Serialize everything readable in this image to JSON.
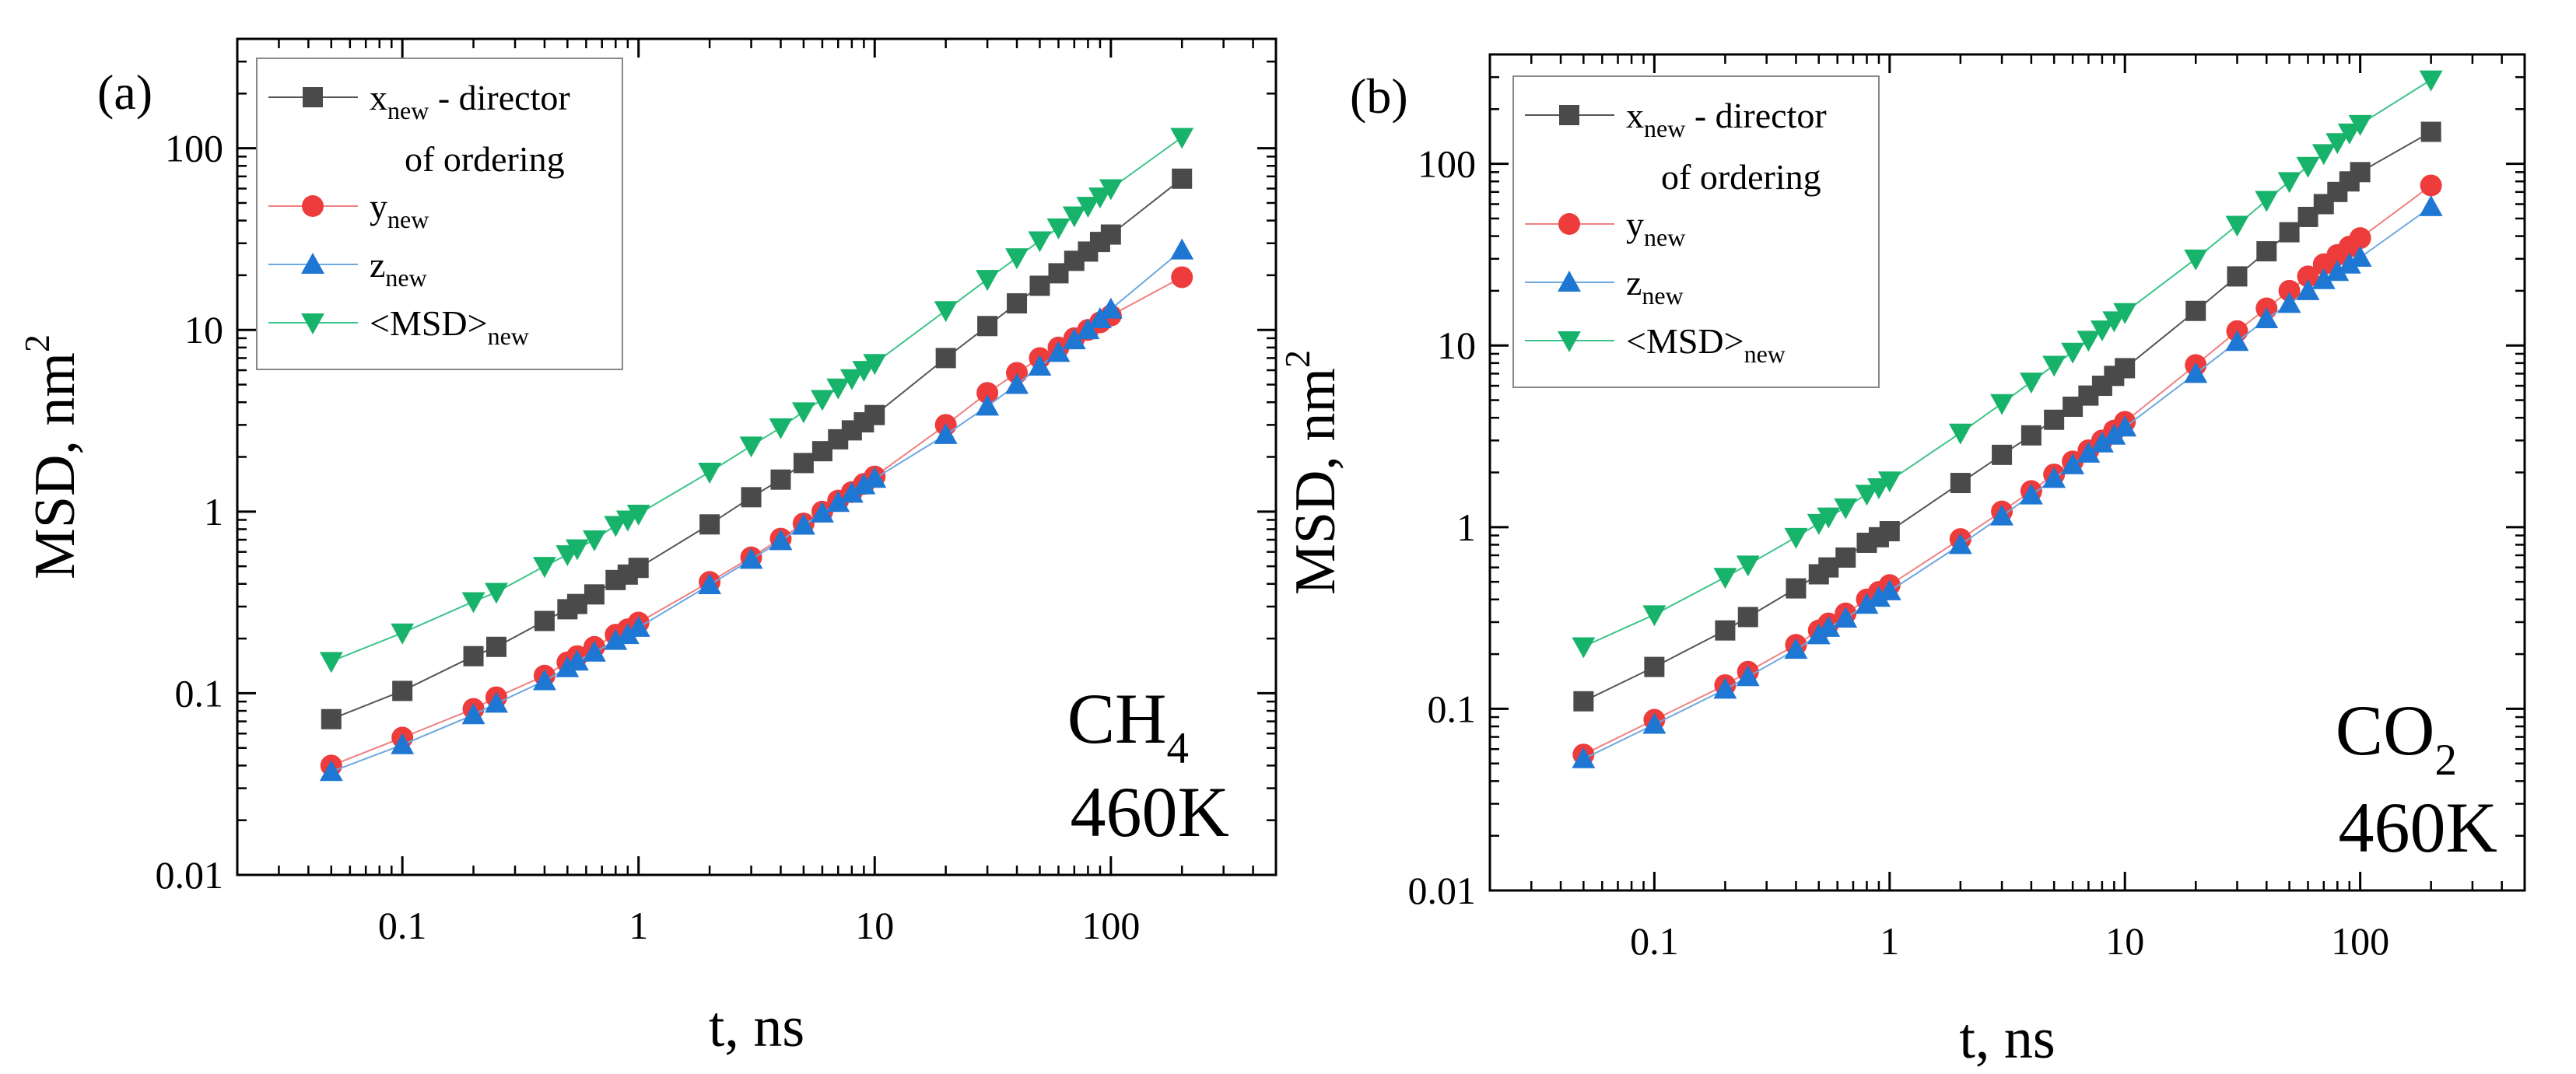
{
  "figure": {
    "description_panels": [
      "a",
      "b"
    ]
  },
  "colors": {
    "x_new": "#4a4a4a",
    "y_new": "#ee3b3b",
    "z_new": "#1f77d4",
    "msd_new": "#18b36b",
    "x_line": "#555555",
    "y_line": "#f08080",
    "z_line": "#6ea8e0",
    "msd_line": "#3cc48a"
  },
  "chart_data": [
    {
      "type": "line",
      "panel_label": "(a)",
      "ylabel": "MSD, nm",
      "ylabel_sup": "2",
      "xlabel": "t, ns",
      "xscale": "log",
      "yscale": "log",
      "xlim": [
        0.02,
        500
      ],
      "ylim": [
        0.01,
        400
      ],
      "xticks": [
        0.1,
        1,
        10,
        100
      ],
      "xtick_labels": [
        "0.1",
        "1",
        "10",
        "100"
      ],
      "yticks": [
        0.01,
        0.1,
        1,
        10,
        100
      ],
      "ytick_labels": [
        "0.01",
        "0.1",
        "1",
        "10",
        "100"
      ],
      "annotation": {
        "species": "CH",
        "species_sub": "4",
        "temperature": "460K"
      },
      "legend": [
        {
          "key": "x_new",
          "main": "x",
          "sub": "new",
          "rest": " - director",
          "line2": "of ordering"
        },
        {
          "key": "y_new",
          "main": "y",
          "sub": "new",
          "rest": ""
        },
        {
          "key": "z_new",
          "main": "z",
          "sub": "new",
          "rest": ""
        },
        {
          "key": "msd_new",
          "main": "<MSD>",
          "sub": "new",
          "rest": ""
        }
      ],
      "x": [
        0.05,
        0.1,
        0.2,
        0.25,
        0.4,
        0.5,
        0.55,
        0.65,
        0.8,
        0.9,
        1,
        2,
        3,
        4,
        5,
        6,
        7,
        8,
        9,
        10,
        20,
        30,
        40,
        50,
        60,
        70,
        80,
        90,
        100,
        200
      ],
      "series": [
        {
          "key": "x_new",
          "marker": "square",
          "values": [
            0.072,
            0.103,
            0.16,
            0.18,
            0.25,
            0.29,
            0.31,
            0.35,
            0.42,
            0.45,
            0.49,
            0.85,
            1.2,
            1.5,
            1.85,
            2.15,
            2.5,
            2.8,
            3.1,
            3.4,
            7.0,
            10.5,
            14,
            17.5,
            20.5,
            24,
            27,
            30.5,
            33.5,
            68
          ]
        },
        {
          "key": "y_new",
          "marker": "circle",
          "values": [
            0.04,
            0.057,
            0.082,
            0.095,
            0.125,
            0.148,
            0.16,
            0.18,
            0.21,
            0.225,
            0.245,
            0.41,
            0.56,
            0.71,
            0.86,
            1.0,
            1.15,
            1.28,
            1.42,
            1.56,
            3.0,
            4.5,
            5.8,
            7.0,
            8.0,
            9.0,
            10.0,
            11.0,
            12.0,
            19.5
          ]
        },
        {
          "key": "z_new",
          "marker": "triangle-up",
          "values": [
            0.037,
            0.052,
            0.076,
            0.088,
            0.117,
            0.138,
            0.15,
            0.168,
            0.195,
            0.21,
            0.23,
            0.395,
            0.545,
            0.69,
            0.84,
            0.98,
            1.12,
            1.26,
            1.4,
            1.52,
            2.65,
            3.8,
            5.0,
            6.3,
            7.5,
            8.8,
            10.0,
            11.5,
            13.0,
            27.5
          ]
        },
        {
          "key": "msd_new",
          "marker": "triangle-down",
          "values": [
            0.15,
            0.215,
            0.32,
            0.36,
            0.5,
            0.58,
            0.625,
            0.7,
            0.84,
            0.9,
            0.97,
            1.65,
            2.3,
            2.9,
            3.55,
            4.15,
            4.8,
            5.4,
            6.0,
            6.55,
            12.8,
            19,
            25,
            31,
            36.5,
            42.5,
            48,
            54,
            60,
            115
          ]
        }
      ]
    },
    {
      "type": "line",
      "panel_label": "(b)",
      "ylabel": "MSD, nm",
      "ylabel_sup": "2",
      "xlabel": "t, ns",
      "xscale": "log",
      "yscale": "log",
      "xlim": [
        0.02,
        500
      ],
      "ylim": [
        0.01,
        400
      ],
      "xticks": [
        0.1,
        1,
        10,
        100
      ],
      "xtick_labels": [
        "0.1",
        "1",
        "10",
        "100"
      ],
      "yticks": [
        0.01,
        0.1,
        1,
        10,
        100
      ],
      "ytick_labels": [
        "0.01",
        "0.1",
        "1",
        "10",
        "100"
      ],
      "annotation": {
        "species": "CO",
        "species_sub": "2",
        "temperature": "460K"
      },
      "legend": [
        {
          "key": "x_new",
          "main": "x",
          "sub": "new",
          "rest": " - director",
          "line2": "of ordering"
        },
        {
          "key": "y_new",
          "main": "y",
          "sub": "new",
          "rest": ""
        },
        {
          "key": "z_new",
          "main": "z",
          "sub": "new",
          "rest": ""
        },
        {
          "key": "msd_new",
          "main": "<MSD>",
          "sub": "new",
          "rest": ""
        }
      ],
      "x": [
        0.05,
        0.1,
        0.2,
        0.25,
        0.4,
        0.5,
        0.55,
        0.65,
        0.8,
        0.9,
        1,
        2,
        3,
        4,
        5,
        6,
        7,
        8,
        9,
        10,
        20,
        30,
        40,
        50,
        60,
        70,
        80,
        90,
        100,
        200
      ],
      "series": [
        {
          "key": "x_new",
          "marker": "square",
          "values": [
            0.11,
            0.17,
            0.27,
            0.32,
            0.46,
            0.55,
            0.6,
            0.68,
            0.82,
            0.88,
            0.95,
            1.75,
            2.5,
            3.2,
            3.9,
            4.6,
            5.3,
            6.0,
            6.8,
            7.5,
            15.5,
            24,
            33,
            42,
            51,
            60,
            70,
            80,
            90,
            150
          ]
        },
        {
          "key": "y_new",
          "marker": "circle",
          "values": [
            0.056,
            0.087,
            0.135,
            0.16,
            0.225,
            0.27,
            0.295,
            0.335,
            0.4,
            0.44,
            0.48,
            0.86,
            1.22,
            1.58,
            1.95,
            2.3,
            2.65,
            3.0,
            3.4,
            3.8,
            7.8,
            12,
            16,
            20,
            24,
            28,
            31.5,
            35,
            39,
            76
          ]
        },
        {
          "key": "z_new",
          "marker": "triangle-up",
          "values": [
            0.053,
            0.082,
            0.128,
            0.15,
            0.212,
            0.255,
            0.28,
            0.315,
            0.375,
            0.41,
            0.445,
            0.8,
            1.15,
            1.5,
            1.85,
            2.2,
            2.55,
            2.9,
            3.2,
            3.55,
            7.0,
            10.5,
            14,
            17,
            20,
            23,
            25.5,
            28,
            30.5,
            58
          ]
        },
        {
          "key": "msd_new",
          "marker": "triangle-down",
          "values": [
            0.22,
            0.33,
            0.53,
            0.62,
            0.88,
            1.05,
            1.14,
            1.28,
            1.52,
            1.65,
            1.8,
            3.3,
            4.8,
            6.3,
            7.8,
            9.2,
            10.7,
            12.2,
            13.7,
            15.2,
            30,
            46,
            63,
            80,
            97,
            114,
            131,
            148,
            165,
            290
          ]
        }
      ]
    }
  ]
}
